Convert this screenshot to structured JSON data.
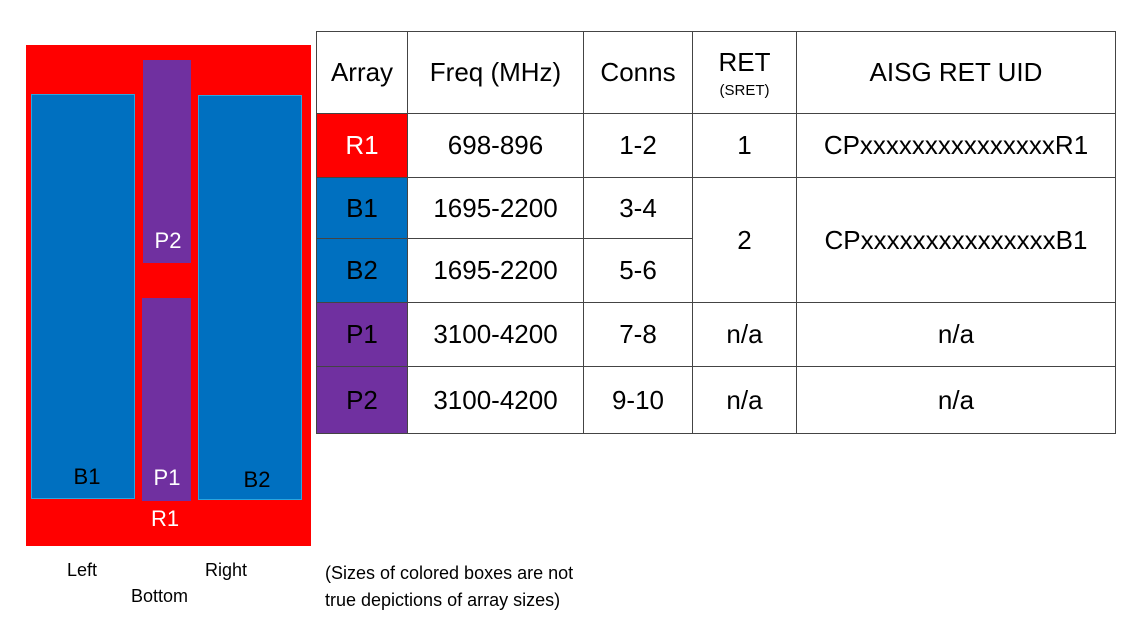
{
  "colors": {
    "red": "#ff0000",
    "blue": "#0070c0",
    "purple": "#7030a0"
  },
  "diagram": {
    "r1": "R1",
    "b1": "B1",
    "b2": "B2",
    "p1": "P1",
    "p2": "P2",
    "left": "Left",
    "right": "Right",
    "bottom": "Bottom"
  },
  "note_line1": "(Sizes of colored boxes are not",
  "note_line2": "true depictions of array sizes)",
  "table": {
    "headers": [
      "Array",
      "Freq (MHz)",
      "Conns",
      "RET",
      "AISG RET UID"
    ],
    "ret_sub": "(SRET)",
    "rows": [
      {
        "array": "R1",
        "freq": "698-896",
        "conns": "1-2",
        "ret": "1",
        "uid": "CPxxxxxxxxxxxxxxxR1"
      },
      {
        "array": "B1",
        "freq": "1695-2200",
        "conns": "3-4",
        "ret": "2",
        "uid": "CPxxxxxxxxxxxxxxxB1"
      },
      {
        "array": "B2",
        "freq": "1695-2200",
        "conns": "5-6"
      },
      {
        "array": "P1",
        "freq": "3100-4200",
        "conns": "7-8",
        "ret": "n/a",
        "uid": "n/a"
      },
      {
        "array": "P2",
        "freq": "3100-4200",
        "conns": "9-10",
        "ret": "n/a",
        "uid": "n/a"
      }
    ]
  }
}
